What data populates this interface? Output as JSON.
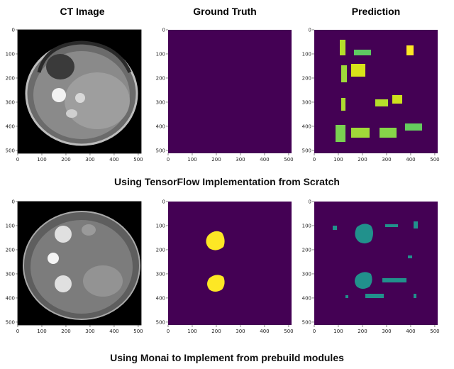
{
  "column_titles": [
    "CT Image",
    "Ground Truth",
    "Prediction"
  ],
  "row_captions": [
    "Using TensorFlow Implementation from Scratch",
    "Using Monai to Implement from prebuild modules"
  ],
  "axis": {
    "x_ticks": [
      "0",
      "100",
      "200",
      "300",
      "400",
      "500"
    ],
    "y_ticks": [
      "0",
      "100",
      "200",
      "300",
      "400",
      "500"
    ]
  },
  "colors": {
    "viridis_background": "#440154",
    "viridis_yellow": "#fde725",
    "viridis_teal": "#21918c",
    "viridis_green": "#5ec962",
    "ct_background": "#000000"
  },
  "panels": [
    {
      "row": 0,
      "kind": "ct-image"
    },
    {
      "row": 0,
      "kind": "ground-truth"
    },
    {
      "row": 0,
      "kind": "prediction"
    },
    {
      "row": 1,
      "kind": "ct-image"
    },
    {
      "row": 1,
      "kind": "ground-truth"
    },
    {
      "row": 1,
      "kind": "prediction"
    }
  ]
}
